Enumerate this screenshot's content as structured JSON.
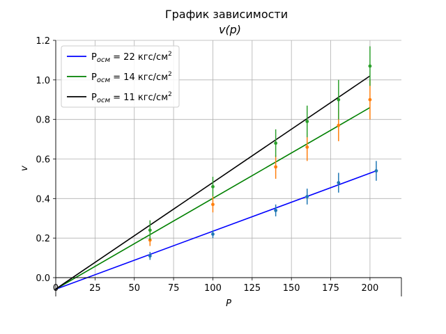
{
  "chart_data": {
    "type": "scatter",
    "title": "График зависимости",
    "subtitle": "v(p)",
    "xlabel": "P",
    "ylabel": "v",
    "xlim": [
      0,
      220
    ],
    "ylim": [
      0,
      1.2
    ],
    "x_ticks": [
      "0",
      "25",
      "50",
      "75",
      "100",
      "125",
      "150",
      "175",
      "200"
    ],
    "y_ticks": [
      "0.0",
      "0.2",
      "0.4",
      "0.6",
      "0.8",
      "1.0",
      "1.2"
    ],
    "grid": true,
    "legend_position": "top-left",
    "legend": [
      {
        "prefix": "P",
        "sub": "осм",
        "rest": " = 22 кгс/см",
        "sup": "2",
        "color": "#0000ff"
      },
      {
        "prefix": "P",
        "sub": "осм",
        "rest": " = 14 кгс/см",
        "sup": "2",
        "color": "#008000"
      },
      {
        "prefix": "P",
        "sub": "осм",
        "rest": " = 11 кгс/см",
        "sup": "2",
        "color": "#000000"
      }
    ],
    "fit_lines": [
      {
        "color": "#0000ff",
        "x": [
          0,
          204
        ],
        "y": [
          -0.06,
          0.54
        ]
      },
      {
        "color": "#008000",
        "x": [
          0,
          200
        ],
        "y": [
          -0.06,
          0.86
        ]
      },
      {
        "color": "#000000",
        "x": [
          0,
          200
        ],
        "y": [
          -0.06,
          1.02
        ]
      }
    ],
    "points": [
      {
        "color": "#1f77b4",
        "x": [
          60,
          100,
          140,
          160,
          180,
          204
        ],
        "y": [
          0.11,
          0.22,
          0.34,
          0.41,
          0.48,
          0.54
        ],
        "err": [
          0.02,
          0.02,
          0.03,
          0.04,
          0.05,
          0.05
        ]
      },
      {
        "color": "#ff7f0e",
        "x": [
          60,
          100,
          140,
          160,
          180,
          200
        ],
        "y": [
          0.19,
          0.37,
          0.56,
          0.66,
          0.77,
          0.9
        ],
        "err": [
          0.03,
          0.04,
          0.06,
          0.07,
          0.08,
          0.1
        ]
      },
      {
        "color": "#2ca02c",
        "x": [
          60,
          100,
          140,
          160,
          180,
          200
        ],
        "y": [
          0.24,
          0.46,
          0.68,
          0.79,
          0.9,
          1.07
        ],
        "err": [
          0.05,
          0.05,
          0.07,
          0.08,
          0.1,
          0.1
        ]
      }
    ]
  }
}
